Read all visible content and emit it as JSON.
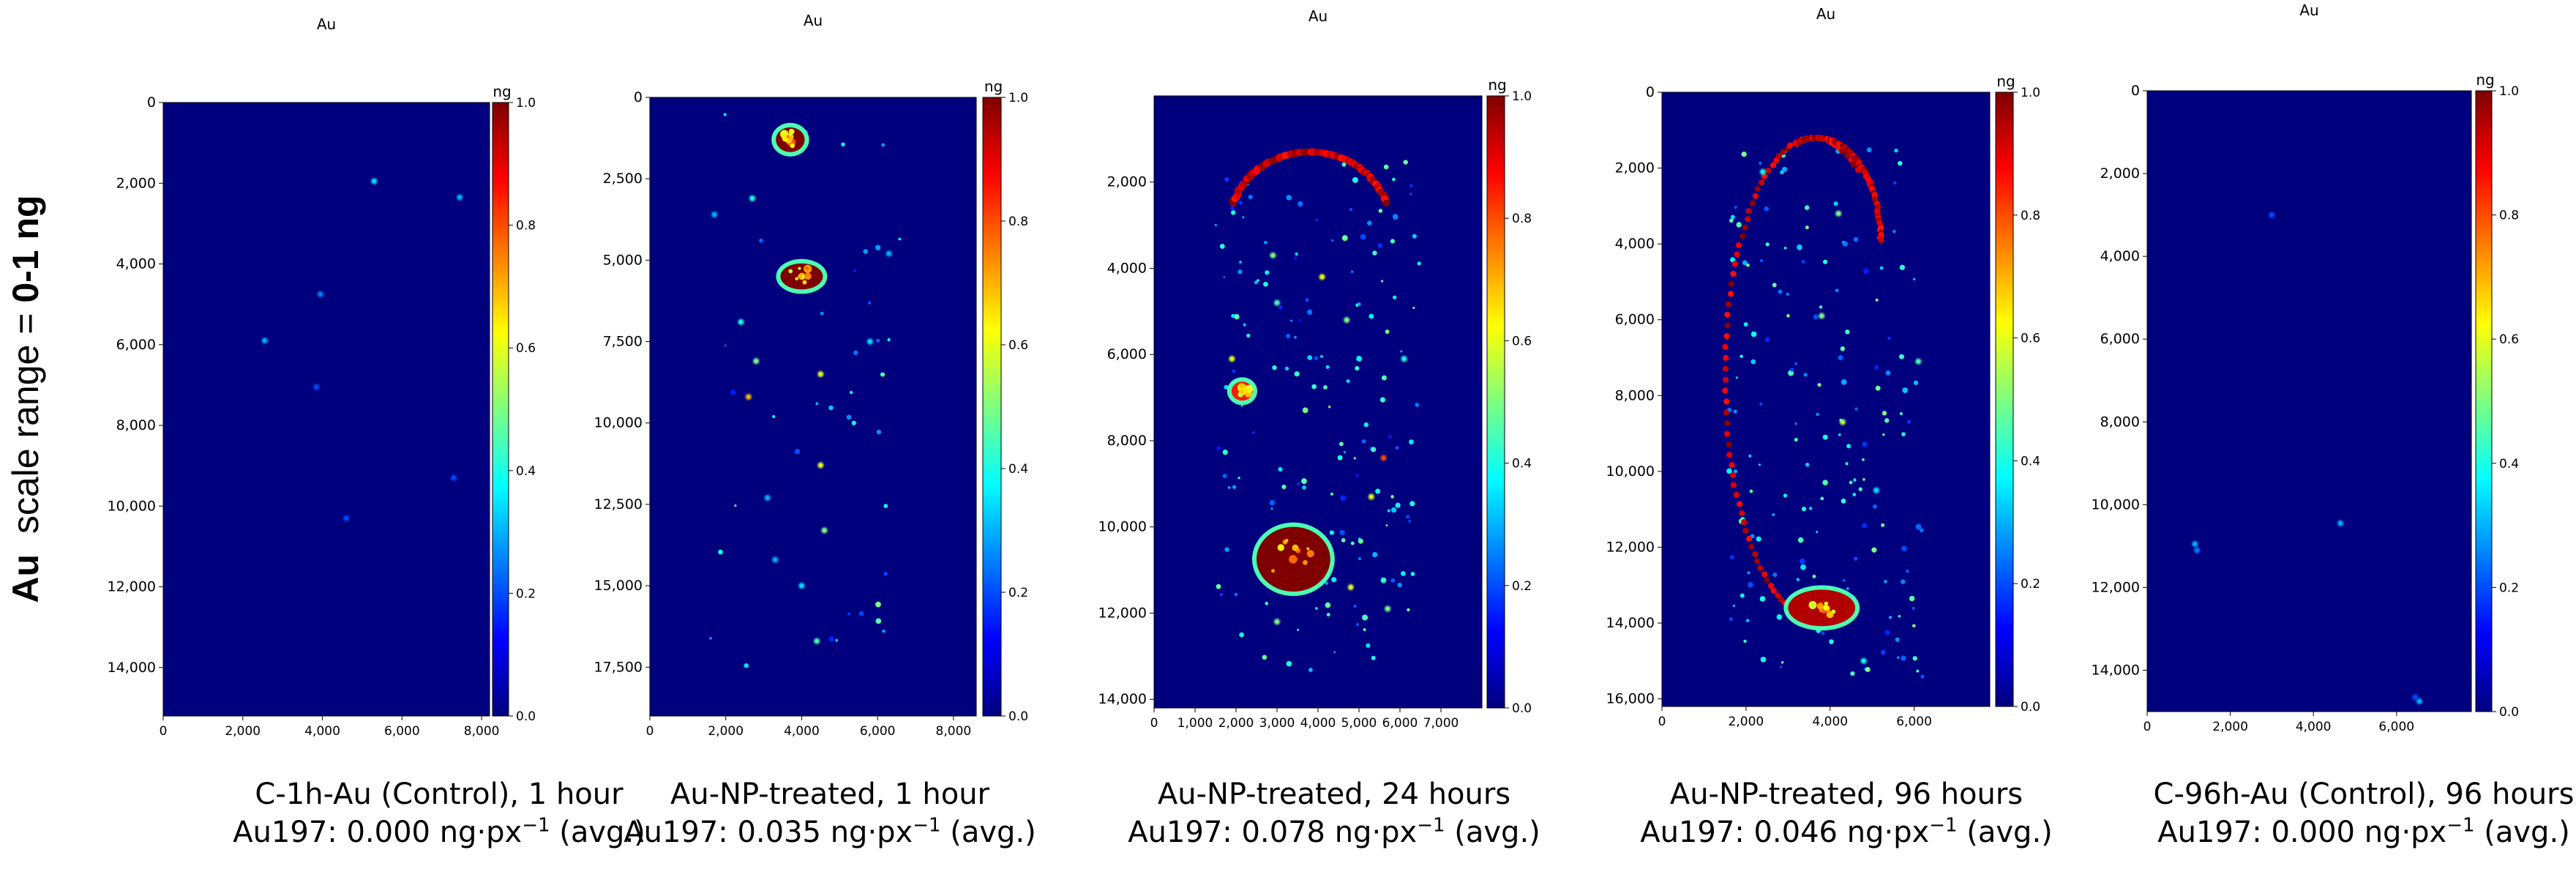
{
  "side_label": {
    "bold_prefix": "Au",
    "mid": "  scale range = ",
    "bold_suffix": "0-1 ng"
  },
  "colorscale": {
    "colors": [
      "#00007f",
      "#0000ff",
      "#007fff",
      "#00ffff",
      "#7fff7f",
      "#ffff00",
      "#ff7f00",
      "#ff0000",
      "#7f0000"
    ]
  },
  "chart_data": [
    {
      "type": "heatmap",
      "title": "Au",
      "colorbar": {
        "label": "ng",
        "range": [
          0,
          1
        ],
        "ticks": [
          "0.0",
          "0.2",
          "0.4",
          "0.6",
          "0.8",
          "1.0"
        ]
      },
      "xlim": [
        0,
        8200
      ],
      "ylim": [
        15200,
        0
      ],
      "x_ticks": [
        0,
        2000,
        4000,
        6000,
        8000
      ],
      "y_ticks": [
        0,
        2000,
        4000,
        6000,
        8000,
        10000,
        12000,
        14000
      ],
      "caption_line1": "C-1h-Au (Control), 1 hour",
      "caption_line2_pre": "Au197: 0.000 ng·px",
      "caption_sup": "−1",
      "caption_line2_post": " (avg.)",
      "hotspots": [
        {
          "x": 5300,
          "y": 1950,
          "v": 0.35
        },
        {
          "x": 7450,
          "y": 2350,
          "v": 0.3
        },
        {
          "x": 3950,
          "y": 4750,
          "v": 0.25
        },
        {
          "x": 2550,
          "y": 5900,
          "v": 0.3
        },
        {
          "x": 3850,
          "y": 7050,
          "v": 0.2
        },
        {
          "x": 7300,
          "y": 9300,
          "v": 0.2
        },
        {
          "x": 4600,
          "y": 10300,
          "v": 0.2
        }
      ]
    },
    {
      "type": "heatmap",
      "title": "Au",
      "colorbar": {
        "label": "ng",
        "range": [
          0,
          1
        ],
        "ticks": [
          "0.0",
          "0.2",
          "0.4",
          "0.6",
          "0.8",
          "1.0"
        ]
      },
      "xlim": [
        0,
        8600
      ],
      "ylim": [
        19000,
        0
      ],
      "x_ticks": [
        0,
        2000,
        4000,
        6000,
        8000
      ],
      "y_ticks": [
        0,
        2500,
        5000,
        7500,
        10000,
        12500,
        15000,
        17500
      ],
      "caption_line1": "Au-NP-treated, 1 hour",
      "caption_line2_pre": "Au197: 0.035 ng·px",
      "caption_sup": "−1",
      "caption_line2_post": " (avg.)",
      "blobs": [
        {
          "x": 3700,
          "y": 1300,
          "rx": 380,
          "ry": 380,
          "v": 1.0
        },
        {
          "x": 4000,
          "y": 5500,
          "rx": 560,
          "ry": 400,
          "v": 1.0
        }
      ],
      "hotspots": [
        {
          "x": 2400,
          "y": 6900,
          "v": 0.4
        },
        {
          "x": 4500,
          "y": 8500,
          "v": 0.6
        },
        {
          "x": 2800,
          "y": 8100,
          "v": 0.5
        },
        {
          "x": 4400,
          "y": 16700,
          "v": 0.45
        },
        {
          "x": 4000,
          "y": 15000,
          "v": 0.35
        },
        {
          "x": 2600,
          "y": 9200,
          "v": 0.7
        },
        {
          "x": 4500,
          "y": 11300,
          "v": 0.6
        },
        {
          "x": 4600,
          "y": 13300,
          "v": 0.5
        },
        {
          "x": 5800,
          "y": 7500,
          "v": 0.35
        },
        {
          "x": 3100,
          "y": 12300,
          "v": 0.3
        },
        {
          "x": 3300,
          "y": 14200,
          "v": 0.3
        },
        {
          "x": 2700,
          "y": 3100,
          "v": 0.4
        },
        {
          "x": 6300,
          "y": 4800,
          "v": 0.3
        },
        {
          "x": 1700,
          "y": 3600,
          "v": 0.3
        }
      ],
      "sparkle": {
        "x": [
          1600,
          6600
        ],
        "y": [
          500,
          18000
        ],
        "n": 40
      }
    },
    {
      "type": "heatmap",
      "title": "Au",
      "colorbar": {
        "label": "ng",
        "range": [
          0,
          1
        ],
        "ticks": [
          "0.0",
          "0.2",
          "0.4",
          "0.6",
          "0.8",
          "1.0"
        ]
      },
      "xlim": [
        0,
        8000
      ],
      "ylim": [
        14200,
        0
      ],
      "x_ticks": [
        0,
        1000,
        2000,
        3000,
        4000,
        5000,
        6000,
        7000
      ],
      "y_ticks": [
        2000,
        4000,
        6000,
        8000,
        10000,
        12000,
        14000
      ],
      "caption_line1": "Au-NP-treated, 24 hours",
      "caption_line2_pre": "Au197: 0.078 ng·px",
      "caption_sup": "−1",
      "caption_line2_post": " (avg.)",
      "blobs": [
        {
          "x": 3400,
          "y": 10750,
          "rx": 900,
          "ry": 750,
          "v": 1.0
        },
        {
          "x": 2150,
          "y": 6850,
          "rx": 260,
          "ry": 220,
          "v": 0.85
        }
      ],
      "arc": {
        "cx": 3800,
        "cy": 3100,
        "rx": 2000,
        "ry": 1800,
        "from": 200,
        "to": 340,
        "v": 1.0,
        "w": 110
      },
      "hotspots": [
        {
          "x": 4800,
          "y": 11400,
          "v": 0.6
        },
        {
          "x": 5600,
          "y": 8400,
          "v": 0.8
        },
        {
          "x": 5300,
          "y": 9300,
          "v": 0.6
        },
        {
          "x": 3000,
          "y": 12200,
          "v": 0.5
        },
        {
          "x": 2900,
          "y": 3700,
          "v": 0.5
        },
        {
          "x": 4100,
          "y": 4200,
          "v": 0.6
        },
        {
          "x": 4700,
          "y": 5200,
          "v": 0.5
        },
        {
          "x": 1900,
          "y": 6100,
          "v": 0.6
        },
        {
          "x": 5700,
          "y": 11900,
          "v": 0.5
        },
        {
          "x": 3000,
          "y": 4800,
          "v": 0.45
        },
        {
          "x": 6100,
          "y": 6100,
          "v": 0.4
        }
      ],
      "sparkle": {
        "x": [
          1500,
          6500
        ],
        "y": [
          1400,
          13500
        ],
        "n": 160
      }
    },
    {
      "type": "heatmap",
      "title": "Au",
      "colorbar": {
        "label": "ng",
        "range": [
          0,
          1
        ],
        "ticks": [
          "0.0",
          "0.2",
          "0.4",
          "0.6",
          "0.8",
          "1.0"
        ]
      },
      "xlim": [
        0,
        7800
      ],
      "ylim": [
        16200,
        0
      ],
      "x_ticks": [
        0,
        2000,
        4000,
        6000
      ],
      "y_ticks": [
        0,
        2000,
        4000,
        6000,
        8000,
        10000,
        12000,
        14000,
        16000
      ],
      "caption_line1": "Au-NP-treated, 96 hours",
      "caption_line2_pre": "Au197: 0.046 ng·px",
      "caption_sup": "−1",
      "caption_line2_post": " (avg.)",
      "blobs": [
        {
          "x": 3800,
          "y": 13600,
          "rx": 800,
          "ry": 480,
          "v": 0.95
        }
      ],
      "outline": {
        "cx": 3600,
        "cy": 7500,
        "rx": 2100,
        "ry": 6300,
        "from": 90,
        "to": 300,
        "v": 1.0,
        "w": 90
      },
      "outline2": {
        "cx": 3700,
        "cy": 3900,
        "rx": 1500,
        "ry": 2700,
        "from": 250,
        "to": 360,
        "v": 1.0,
        "w": 90
      },
      "hotspots": [
        {
          "x": 4300,
          "y": 8700,
          "v": 0.55
        },
        {
          "x": 4800,
          "y": 15000,
          "v": 0.4
        },
        {
          "x": 3800,
          "y": 5900,
          "v": 0.5
        },
        {
          "x": 4200,
          "y": 3200,
          "v": 0.5
        },
        {
          "x": 6100,
          "y": 7100,
          "v": 0.45
        },
        {
          "x": 2400,
          "y": 2100,
          "v": 0.4
        },
        {
          "x": 5100,
          "y": 10500,
          "v": 0.35
        }
      ],
      "sparkle": {
        "x": [
          1600,
          6200
        ],
        "y": [
          1500,
          15500
        ],
        "n": 170
      }
    },
    {
      "type": "heatmap",
      "title": "Au",
      "colorbar": {
        "label": "ng",
        "range": [
          0,
          1
        ],
        "ticks": [
          "0.0",
          "0.2",
          "0.4",
          "0.6",
          "0.8",
          "1.0"
        ]
      },
      "xlim": [
        0,
        7800
      ],
      "ylim": [
        15000,
        0
      ],
      "x_ticks": [
        0,
        2000,
        4000,
        6000
      ],
      "y_ticks": [
        0,
        2000,
        4000,
        6000,
        8000,
        10000,
        12000,
        14000
      ],
      "caption_line1": "C-96h-Au (Control), 96 hours",
      "caption_line2_pre": "Au197: 0.000 ng·px",
      "caption_sup": "−1",
      "caption_line2_post": " (avg.)",
      "hotspots": [
        {
          "x": 1150,
          "y": 10950,
          "v": 0.3
        },
        {
          "x": 1200,
          "y": 11100,
          "v": 0.25
        },
        {
          "x": 4650,
          "y": 10450,
          "v": 0.3
        },
        {
          "x": 6550,
          "y": 14750,
          "v": 0.3
        },
        {
          "x": 6450,
          "y": 14650,
          "v": 0.2
        },
        {
          "x": 3000,
          "y": 3000,
          "v": 0.2
        }
      ]
    }
  ]
}
